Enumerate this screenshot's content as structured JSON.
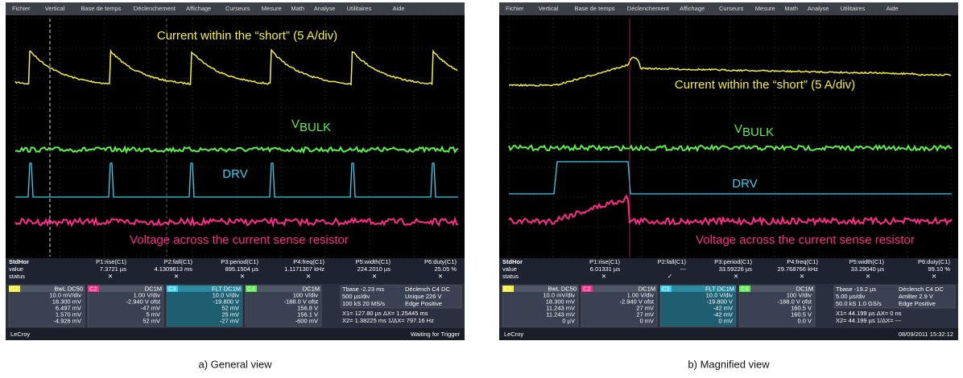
{
  "panels": [
    {
      "menu": [
        "Fichier",
        "Vertical",
        "Base de temps",
        "Déclenchement",
        "Affichage",
        "Curseurs",
        "Mesure",
        "Math",
        "Analyse",
        "Utilitaires",
        "Aide"
      ],
      "annotations": {
        "current": "Current within the “short” (5 A/div)",
        "vbulk": "V",
        "vbulk_sub": "BULK",
        "drv": "DRV",
        "voltage": "Voltage across the current sense resistor"
      },
      "measure": {
        "row_labels": [
          "StdHor",
          "value",
          "status"
        ],
        "columns": [
          {
            "name": "P1:rise(C1)",
            "value": "7.3721 µs",
            "status": "✕"
          },
          {
            "name": "P2:fall(C1)",
            "value": "4.1309813 ms",
            "status": "✕"
          },
          {
            "name": "P3:period(C1)",
            "value": "895.1504 µs",
            "status": "✕"
          },
          {
            "name": "P4:freq(C1)",
            "value": "1.1171307 kHz",
            "status": "✕"
          },
          {
            "name": "P5:width(C1)",
            "value": "224.2010 µs",
            "status": "✕"
          },
          {
            "name": "P6:duty(C1)",
            "value": "25.05 %",
            "status": "✕"
          }
        ]
      },
      "channels": [
        {
          "name": "C1",
          "mode": "BwL DC50",
          "lines": [
            "10.0 mV/div",
            "18.300 mV",
            "6.497 mV",
            "1.570 mV",
            "-4.926 mV"
          ]
        },
        {
          "name": "C2",
          "mode": "DC1M",
          "lines": [
            "1.00 V/div",
            "-2.940 V ofst",
            "-47 mV",
            "5 mV",
            "52 mV"
          ]
        },
        {
          "name": "C3",
          "mode": "FLT DC1M",
          "lines": [
            "10.0 V/div",
            "-19.800 V",
            "52 mV",
            "25 mV",
            "-27 mV"
          ]
        },
        {
          "name": "C4",
          "mode": "DC1M",
          "lines": [
            "100 V/div",
            "-188.0 V ofst",
            "156.8 V",
            "156.1 V",
            "-600 mV"
          ]
        }
      ],
      "timebase": [
        "Tbase  -2.23 ms",
        "500 µs/div",
        "100 kS   20 MS/s"
      ],
      "trigger": [
        "Déclench  C4 DC",
        "Unique   226 V",
        "Edge   Positive"
      ],
      "cursors": [
        "X1=  127.80 µs   ΔX=  1.25445 ms",
        "X2=  1.38225 ms   1/ΔX=  797.16 Hz"
      ],
      "logo": "LeCroy",
      "status": "Waiting for Trigger",
      "caption": "a) General view"
    },
    {
      "menu": [
        "Fichier",
        "Vertical",
        "Base de temps",
        "Déclenchement",
        "Affichage",
        "Curseurs",
        "Mesure",
        "Math",
        "Analyse",
        "Utilitaires",
        "Aide"
      ],
      "annotations": {
        "current": "Current within the “short” (5 A/div)",
        "vbulk": "V",
        "vbulk_sub": "BULK",
        "drv": "DRV",
        "voltage": "Voltage across the current sense resistor"
      },
      "measure": {
        "row_labels": [
          "StdHor",
          "value",
          "status"
        ],
        "columns": [
          {
            "name": "P1:rise(C1)",
            "value": "6.01331 µs",
            "status": "✕"
          },
          {
            "name": "P2:fall(C1)",
            "value": "---",
            "status": "✓"
          },
          {
            "name": "P3:period(C1)",
            "value": "33.59226 µs",
            "status": "✕"
          },
          {
            "name": "P4:freq(C1)",
            "value": "29.768766 kHz",
            "status": "✕"
          },
          {
            "name": "P5:width(C1)",
            "value": "33.29040 µs",
            "status": "✕"
          },
          {
            "name": "P6:duty(C1)",
            "value": "99.10 %",
            "status": "✕"
          }
        ]
      },
      "channels": [
        {
          "name": "C1",
          "mode": "BwL DC50",
          "lines": [
            "10.0 mV/div",
            "18.300 mV",
            "11.243 mV",
            "11.243 mV",
            "0 µV"
          ]
        },
        {
          "name": "C2",
          "mode": "DC1M",
          "lines": [
            "1.00 V/div",
            "-2.940 V ofst",
            "27 mV",
            "27 mV",
            "0 mV"
          ]
        },
        {
          "name": "C3",
          "mode": "FLT DC1M",
          "lines": [
            "10.0 V/div",
            "-19.800 V",
            "-42 mV",
            "-42 mV",
            "0 mV"
          ]
        },
        {
          "name": "C4",
          "mode": "DC1M",
          "lines": [
            "100 V/div",
            "-188.0 V ofst",
            "160.5 V",
            "160.5 V",
            "0.0 V"
          ]
        }
      ],
      "timebase": [
        "Tbase  -19.2 µs",
        "5.00 µs/div",
        "50.0 kS   1.0 GS/s"
      ],
      "trigger": [
        "Déclench  C4 DC",
        "Amliter   2.9 V",
        "Edge   Positive"
      ],
      "cursors": [
        "X1=  44.199 µs   ΔX=  0 ns",
        "X2=  44.199 µs   1/ΔX=  ---"
      ],
      "logo": "LeCroy",
      "status": "08/09/2011 15:32:12",
      "caption": "b) Magnified view"
    }
  ]
}
